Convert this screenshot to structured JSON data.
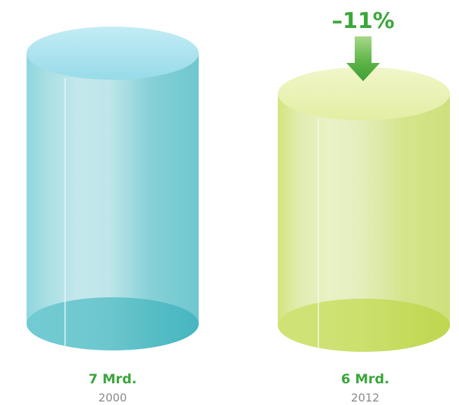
{
  "chart_data": {
    "type": "bar",
    "categories": [
      "2000",
      "2012"
    ],
    "values": [
      7,
      6
    ],
    "value_labels": [
      "7 Mrd.",
      "6 Mrd."
    ],
    "change_label": "–11%",
    "colors": {
      "bar_2000": "#7fd0d8",
      "bar_2012": "#d4e58a",
      "label_green": "#3aa63a",
      "year_gray": "#8a8a8a"
    }
  }
}
